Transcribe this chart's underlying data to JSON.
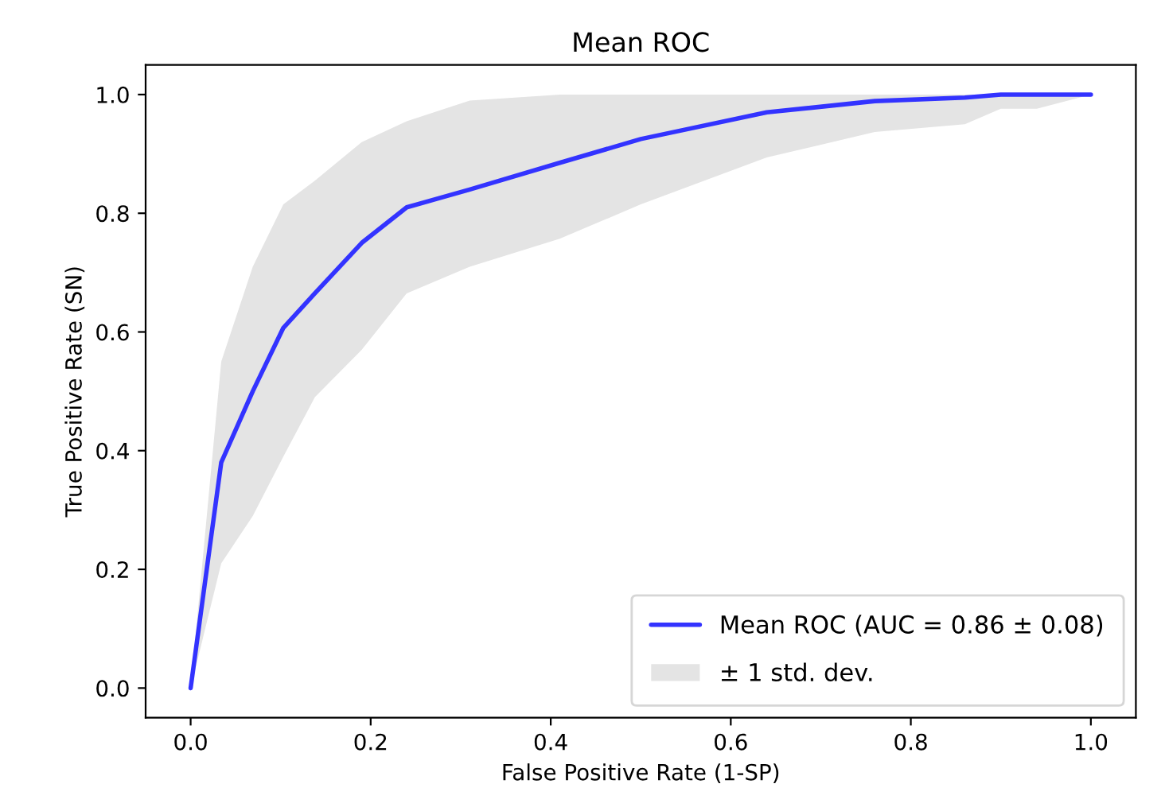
{
  "chart_data": {
    "type": "line",
    "title": "Mean ROC",
    "xlabel": "False Positive Rate (1-SP)",
    "ylabel": "True Positive Rate (SN)",
    "xlim": [
      -0.05,
      1.05
    ],
    "ylim": [
      -0.05,
      1.05
    ],
    "xticks": [
      {
        "value": 0,
        "label": "0.0"
      },
      {
        "value": 0.2,
        "label": "0.2"
      },
      {
        "value": 0.4,
        "label": "0.4"
      },
      {
        "value": 0.6,
        "label": "0.6"
      },
      {
        "value": 0.8,
        "label": "0.8"
      },
      {
        "value": 1,
        "label": "1.0"
      }
    ],
    "yticks": [
      {
        "value": 0,
        "label": "0.0"
      },
      {
        "value": 0.2,
        "label": "0.2"
      },
      {
        "value": 0.4,
        "label": "0.4"
      },
      {
        "value": 0.6,
        "label": "0.6"
      },
      {
        "value": 0.8,
        "label": "0.8"
      },
      {
        "value": 1,
        "label": "1.0"
      }
    ],
    "grid": false,
    "legend": "bottom right",
    "series": [
      {
        "name": "Mean ROC (AUC = 0.86 ± 0.08)",
        "color": "#3333ff",
        "x": [
          0,
          0.034,
          0.069,
          0.103,
          0.138,
          0.19,
          0.24,
          0.31,
          0.41,
          0.5,
          0.64,
          0.76,
          0.86,
          0.9,
          0.94,
          1.0
        ],
        "values": [
          0,
          0.38,
          0.5,
          0.607,
          0.665,
          0.75,
          0.81,
          0.84,
          0.885,
          0.925,
          0.97,
          0.989,
          0.995,
          1.0,
          1.0,
          1.0
        ],
        "lower": [
          0,
          0.21,
          0.29,
          0.39,
          0.49,
          0.57,
          0.665,
          0.71,
          0.757,
          0.815,
          0.894,
          0.937,
          0.95,
          0.976,
          0.976,
          1.0
        ],
        "upper": [
          0,
          0.55,
          0.71,
          0.815,
          0.855,
          0.92,
          0.955,
          0.99,
          1.0,
          1.0,
          1.0,
          1.0,
          1.0,
          1.0,
          1.0,
          1.0
        ]
      },
      {
        "type": "area",
        "name": "± 1 std. dev.",
        "color": "#e4e4e4"
      }
    ]
  }
}
